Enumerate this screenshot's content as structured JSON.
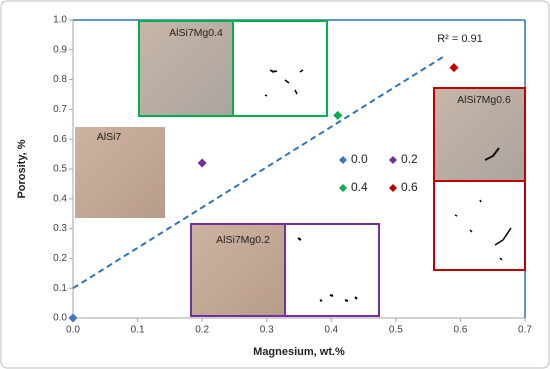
{
  "chart_data": {
    "type": "scatter",
    "x_label": "Magnesium, wt.%",
    "y_label": "Porosity, %",
    "xlim": [
      0,
      0.7
    ],
    "ylim": [
      0,
      1
    ],
    "xticks": [
      {
        "value": 0,
        "label": "0.0"
      },
      0.1,
      0.2,
      0.3,
      0.4,
      0.5,
      0.6,
      0.7
    ],
    "yticks": [
      {
        "value": 0,
        "label": "0.0"
      },
      0.1,
      0.2,
      0.3,
      0.4,
      0.5,
      0.6,
      0.7,
      0.8,
      0.9,
      {
        "value": 1,
        "label": "1.0"
      }
    ],
    "series": [
      {
        "name": "0.0",
        "color": "#4472c4",
        "x": [
          0
        ],
        "values": [
          0
        ]
      },
      {
        "name": "0.2",
        "color": "#7030a0",
        "x": [
          0.2
        ],
        "values": [
          0.52
        ]
      },
      {
        "name": "0.4",
        "color": "#00b050",
        "x": [
          0.41
        ],
        "values": [
          0.68
        ]
      },
      {
        "name": "0.6",
        "color": "#c00000",
        "x": [
          0.59
        ],
        "values": [
          0.84
        ]
      }
    ],
    "trendline": {
      "x": [
        0,
        0.573
      ],
      "values": [
        0.1,
        0.876
      ],
      "color": "#2e75b6",
      "label": "R² = 0.91"
    },
    "image_labels": [
      "AlSi7Mg0.4",
      "AlSi7",
      "AlSi7Mg0.6",
      "AlSi7Mg0.2"
    ]
  }
}
